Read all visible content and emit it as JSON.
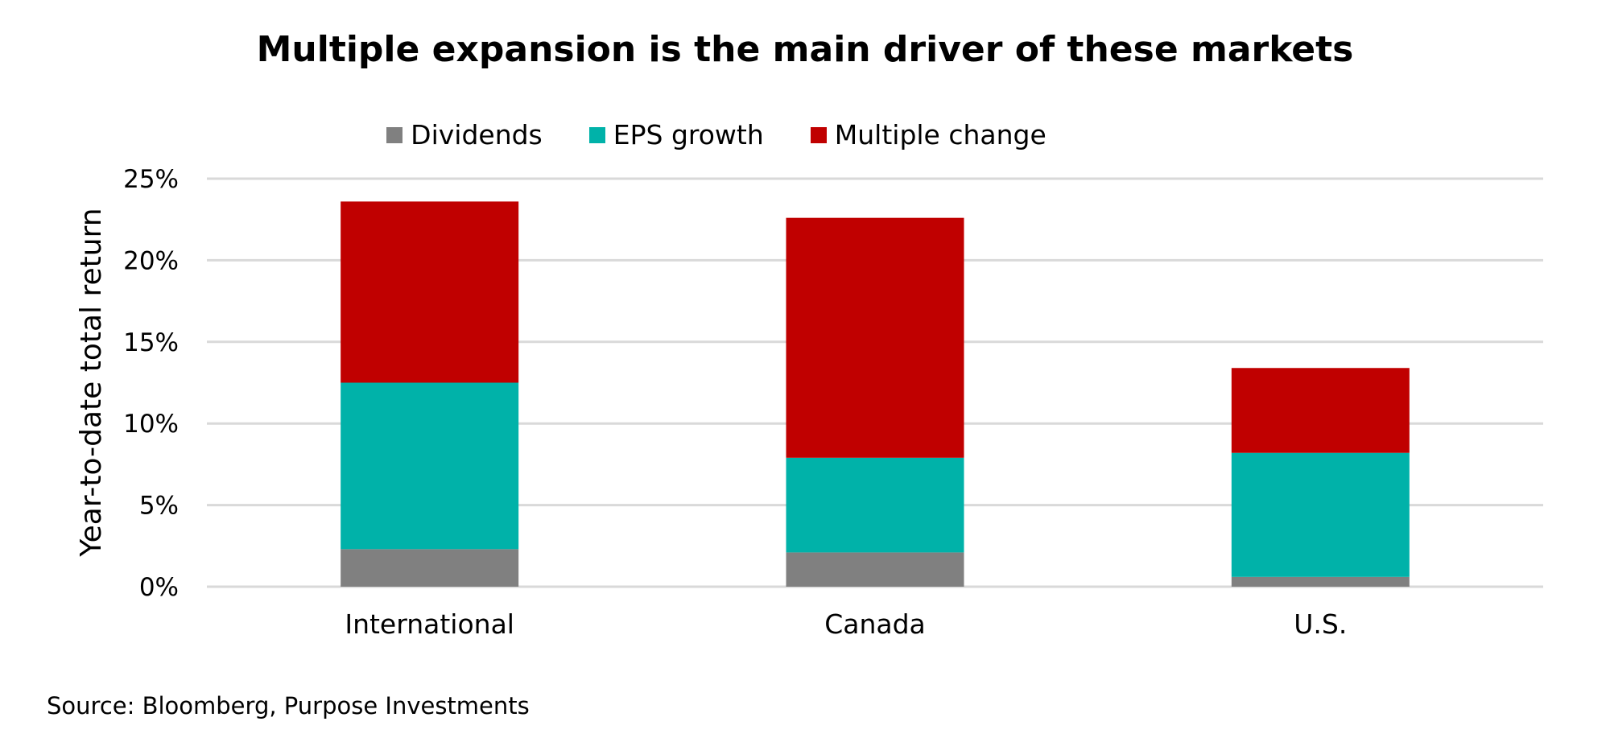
{
  "chart_data": {
    "type": "bar",
    "stacked": true,
    "title": "Multiple expansion is the main driver of these markets",
    "xlabel": "",
    "ylabel": "Year-to-date total return",
    "categories": [
      "International",
      "Canada",
      "U.S."
    ],
    "series": [
      {
        "name": "Dividends",
        "color": "#808080",
        "values": [
          2.3,
          2.1,
          0.6
        ]
      },
      {
        "name": "EPS growth",
        "color": "#00B2A9",
        "values": [
          10.2,
          5.8,
          7.6
        ]
      },
      {
        "name": "Multiple change",
        "color": "#C00000",
        "values": [
          11.1,
          14.7,
          5.2
        ]
      }
    ],
    "ylim": [
      0,
      25
    ],
    "yticks": [
      0,
      5,
      10,
      15,
      20,
      25
    ],
    "ytick_labels": [
      "0%",
      "5%",
      "10%",
      "15%",
      "20%",
      "25%"
    ],
    "grid": true,
    "legend_position": "top"
  },
  "source": "Source: Bloomberg, Purpose Investments"
}
